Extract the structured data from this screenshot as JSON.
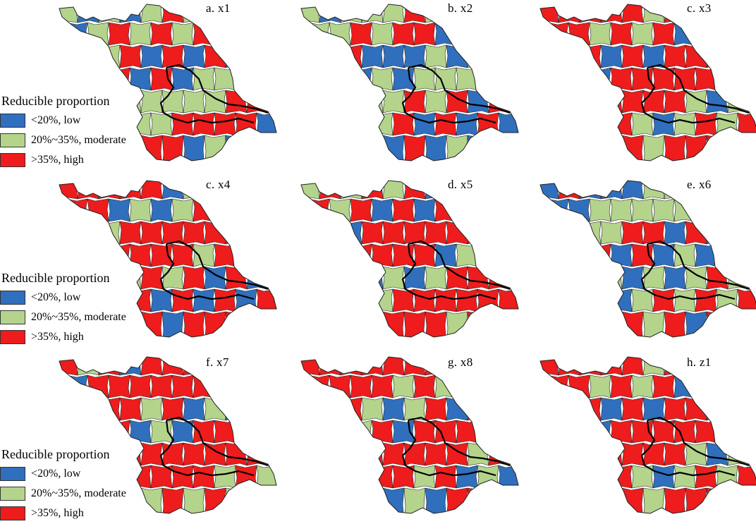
{
  "colors": {
    "low": "#2f6fbd",
    "moderate": "#b4d48c",
    "high": "#ee1c1c",
    "boundary": "#222222",
    "region_boundary": "#000000"
  },
  "legend": {
    "title": "Reducible proportion",
    "items": [
      {
        "class": "low",
        "label": "<20%, low"
      },
      {
        "class": "moderate",
        "label": "20%~35%, moderate"
      },
      {
        "class": "high",
        "label": ">35%, high"
      }
    ]
  },
  "panels": [
    {
      "title": "a. x1",
      "variable": "x1",
      "dominant": "moderate"
    },
    {
      "title": "b. x2",
      "variable": "x2",
      "dominant": "moderate"
    },
    {
      "title": "c. x3",
      "variable": "x3",
      "dominant": "high"
    },
    {
      "title": "c. x4",
      "variable": "x4",
      "dominant": "high"
    },
    {
      "title": "d. x5",
      "variable": "x5",
      "dominant": "high"
    },
    {
      "title": "e. x6",
      "variable": "x6",
      "dominant": "moderate"
    },
    {
      "title": "f. x7",
      "variable": "x7",
      "dominant": "high"
    },
    {
      "title": "g. x8",
      "variable": "x8",
      "dominant": "high"
    },
    {
      "title": "h. z1",
      "variable": "z1",
      "dominant": "high"
    }
  ]
}
